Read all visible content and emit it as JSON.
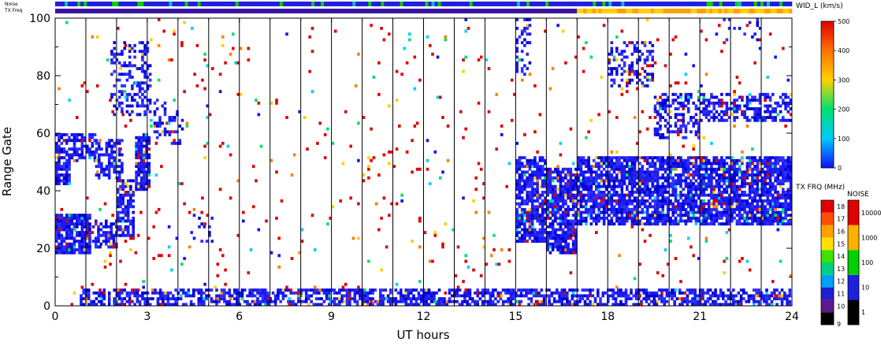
{
  "chart_data": {
    "type": "heatmap",
    "xlabel": "UT hours",
    "ylabel": "Range Gate",
    "xlim": [
      0,
      24
    ],
    "ylim": [
      0,
      100
    ],
    "xticks": [
      "0",
      "3",
      "6",
      "9",
      "12",
      "15",
      "18",
      "21",
      "24"
    ],
    "yticks": [
      "0",
      "20",
      "40",
      "60",
      "80",
      "100"
    ],
    "hour_lines": [
      1,
      2,
      3,
      4,
      5,
      6,
      7,
      8,
      9,
      10,
      11,
      12,
      13,
      14,
      15,
      16,
      17,
      18,
      19,
      20,
      21,
      22,
      23
    ],
    "top_strips": {
      "noise_label": "Noise",
      "txfreq_label": "TX Freq",
      "txfreq_change_hour": 17
    },
    "colorbars": {
      "width": {
        "title": "WID_L (km/s)",
        "ticks": [
          "0",
          "100",
          "200",
          "300",
          "400",
          "500"
        ],
        "stops": [
          "#1010ff",
          "#00c8ff",
          "#00e070",
          "#ffd000",
          "#ff7000",
          "#e00000"
        ]
      },
      "txfreq": {
        "title": "TX FRQ (MHz)",
        "ticks": [
          "9",
          "10",
          "11",
          "12",
          "13",
          "14",
          "15",
          "16",
          "17",
          "18"
        ],
        "colors": [
          "#000000",
          "#5a1a8a",
          "#2020d0",
          "#00a0ff",
          "#00d080",
          "#40e000",
          "#ffe000",
          "#ffa000",
          "#ff5000",
          "#e00000"
        ]
      },
      "noise": {
        "title": "NOISE",
        "ticks": [
          "1",
          "10",
          "100",
          "1000",
          "10000"
        ],
        "colors": [
          "#000000",
          "#2020e0",
          "#00d000",
          "#ffb000",
          "#e00000"
        ]
      }
    },
    "echo_regions": [
      {
        "x0": 0.0,
        "x1": 1.2,
        "y0": 18,
        "y1": 32,
        "density": 0.85
      },
      {
        "x0": 1.2,
        "x1": 2.0,
        "y0": 20,
        "y1": 30,
        "density": 0.6
      },
      {
        "x0": 2.0,
        "x1": 2.6,
        "y0": 24,
        "y1": 44,
        "density": 0.7
      },
      {
        "x0": 2.6,
        "x1": 3.1,
        "y0": 40,
        "y1": 60,
        "density": 0.8
      },
      {
        "x0": 0.0,
        "x1": 0.5,
        "y0": 42,
        "y1": 60,
        "density": 0.75
      },
      {
        "x0": 0.5,
        "x1": 1.3,
        "y0": 50,
        "y1": 60,
        "density": 0.6
      },
      {
        "x0": 1.3,
        "x1": 2.2,
        "y0": 44,
        "y1": 58,
        "density": 0.55
      },
      {
        "x0": 1.8,
        "x1": 3.1,
        "y0": 66,
        "y1": 92,
        "density": 0.35
      },
      {
        "x0": 3.2,
        "x1": 3.6,
        "y0": 58,
        "y1": 72,
        "density": 0.45
      },
      {
        "x0": 3.6,
        "x1": 4.2,
        "y0": 56,
        "y1": 68,
        "density": 0.25
      },
      {
        "x0": 4.4,
        "x1": 5.2,
        "y0": 22,
        "y1": 34,
        "density": 0.15
      },
      {
        "x0": 15.0,
        "x1": 16.0,
        "y0": 22,
        "y1": 52,
        "density": 0.75
      },
      {
        "x0": 16.0,
        "x1": 17.0,
        "y0": 18,
        "y1": 48,
        "density": 0.8
      },
      {
        "x0": 17.0,
        "x1": 24.0,
        "y0": 28,
        "y1": 52,
        "density": 0.8
      },
      {
        "x0": 15.0,
        "x1": 15.5,
        "y0": 78,
        "y1": 100,
        "density": 0.25
      },
      {
        "x0": 18.0,
        "x1": 19.5,
        "y0": 76,
        "y1": 92,
        "density": 0.3
      },
      {
        "x0": 19.5,
        "x1": 21.0,
        "y0": 58,
        "y1": 74,
        "density": 0.45
      },
      {
        "x0": 21.0,
        "x1": 24.0,
        "y0": 64,
        "y1": 74,
        "density": 0.55
      },
      {
        "x0": 21.5,
        "x1": 23.0,
        "y0": 92,
        "y1": 100,
        "density": 0.15
      },
      {
        "x0": 0.8,
        "x1": 24.0,
        "y0": 0,
        "y1": 6,
        "density": 0.6
      },
      {
        "x0": 0.0,
        "x1": 24.0,
        "y0": 0,
        "y1": 100,
        "density": 0.02
      }
    ]
  }
}
